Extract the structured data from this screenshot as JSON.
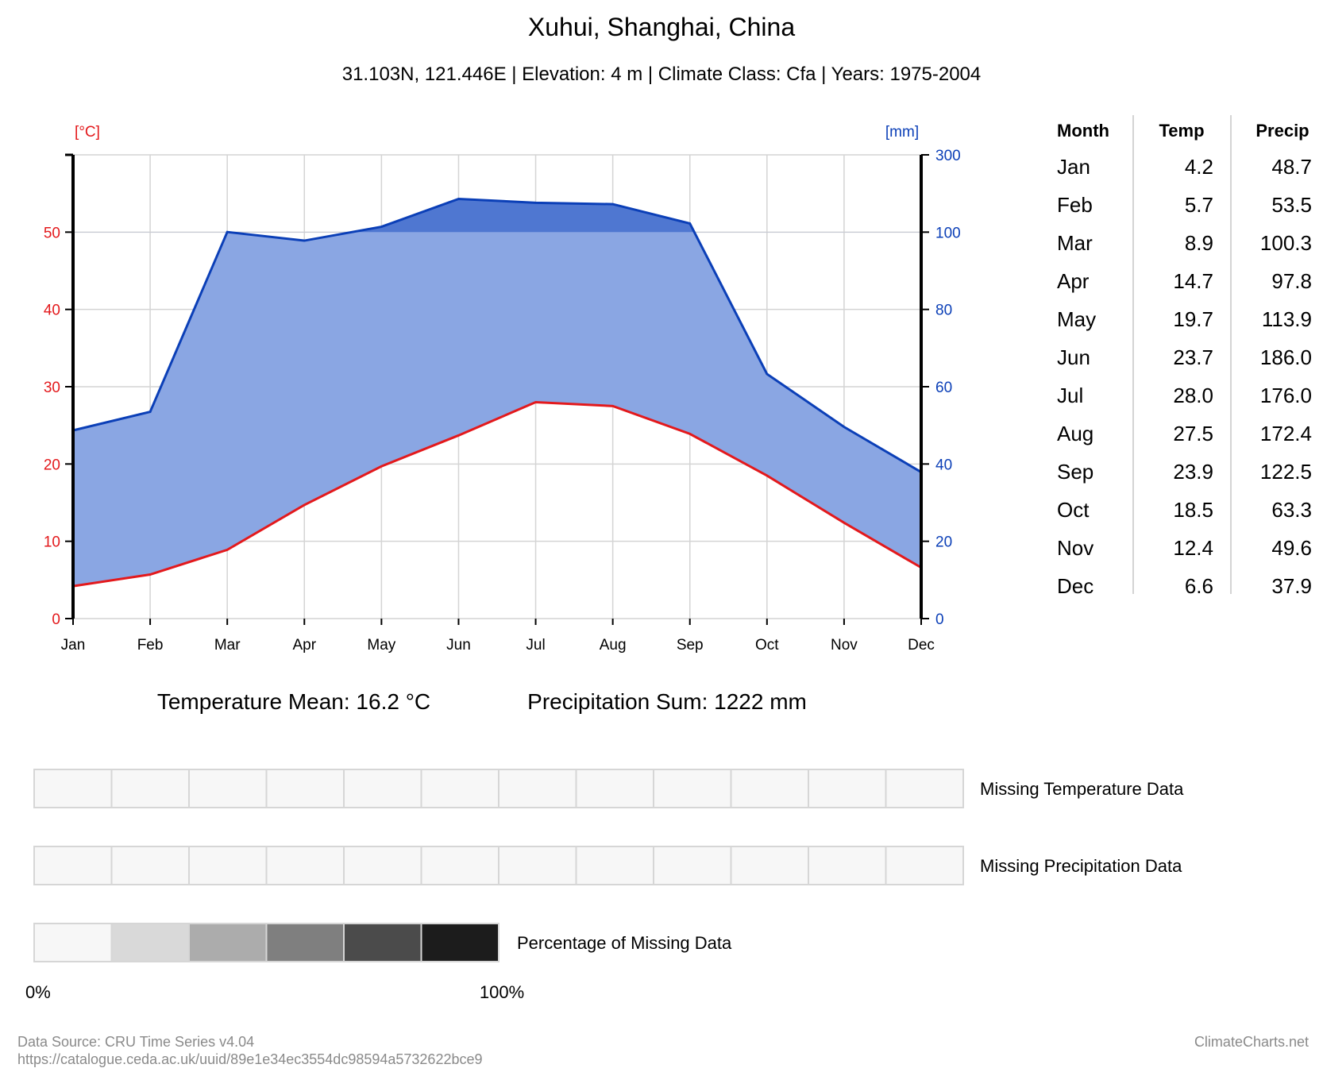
{
  "chart_data": {
    "type": "climate-diagram",
    "title": "Xuhui, Shanghai, China",
    "subtitle": "31.103N, 121.446E | Elevation: 4 m | Climate Class: Cfa | Years: 1975-2004",
    "temp_unit": "[°C]",
    "precip_unit": "[mm]",
    "categories": [
      "Jan",
      "Feb",
      "Mar",
      "Apr",
      "May",
      "Jun",
      "Jul",
      "Aug",
      "Sep",
      "Oct",
      "Nov",
      "Dec"
    ],
    "series": [
      {
        "name": "Temp",
        "values": [
          4.2,
          5.7,
          8.9,
          14.7,
          19.7,
          23.7,
          28.0,
          27.5,
          23.9,
          18.5,
          12.4,
          6.6
        ],
        "color": "#e3191c"
      },
      {
        "name": "Precip",
        "values": [
          48.7,
          53.5,
          100.3,
          97.8,
          113.9,
          186.0,
          176.0,
          172.4,
          122.5,
          63.3,
          49.6,
          37.9
        ],
        "color": "#0b3fb7"
      }
    ],
    "temp_ylim": [
      0,
      60
    ],
    "temp_ticks": [
      "0",
      "10",
      "20",
      "30",
      "40",
      "50"
    ],
    "precip_ticks": [
      "0",
      "20",
      "40",
      "60",
      "80",
      "100",
      "300"
    ],
    "precip_scale_break": 100,
    "precip_ylim": [
      0,
      300
    ],
    "grid": true,
    "fill_color": "#8aa6e3",
    "fill_color_above": "#4f77d1"
  },
  "table": {
    "headers": [
      "Month",
      "Temp",
      "Precip"
    ],
    "rows": [
      [
        "Jan",
        "4.2",
        "48.7"
      ],
      [
        "Feb",
        "5.7",
        "53.5"
      ],
      [
        "Mar",
        "8.9",
        "100.3"
      ],
      [
        "Apr",
        "14.7",
        "97.8"
      ],
      [
        "May",
        "19.7",
        "113.9"
      ],
      [
        "Jun",
        "23.7",
        "186.0"
      ],
      [
        "Jul",
        "28.0",
        "176.0"
      ],
      [
        "Aug",
        "27.5",
        "172.4"
      ],
      [
        "Sep",
        "23.9",
        "122.5"
      ],
      [
        "Oct",
        "18.5",
        "63.3"
      ],
      [
        "Nov",
        "12.4",
        "49.6"
      ],
      [
        "Dec",
        "6.6",
        "37.9"
      ]
    ]
  },
  "summary": {
    "temperature_mean": "Temperature Mean: 16.2 °C",
    "precipitation_sum": "Precipitation Sum: 1222 mm"
  },
  "missing_data": {
    "temperature_label": "Missing Temperature Data",
    "precipitation_label": "Missing Precipitation Data",
    "percentage_label": "Percentage of Missing Data",
    "temperature_missing_pct": [
      0,
      0,
      0,
      0,
      0,
      0,
      0,
      0,
      0,
      0,
      0,
      0
    ],
    "precipitation_missing_pct": [
      0,
      0,
      0,
      0,
      0,
      0,
      0,
      0,
      0,
      0,
      0,
      0
    ],
    "scale_colors": [
      "#f7f7f7",
      "#d9d9d9",
      "#acacac",
      "#7f7f7f",
      "#4b4b4b",
      "#1c1c1c"
    ],
    "scale_min_label": "0%",
    "scale_max_label": "100%"
  },
  "footer": {
    "source_line1": "Data Source: CRU Time Series v4.04",
    "source_line2": "https://catalogue.ceda.ac.uk/uuid/89e1e34ec3554dc98594a5732622bce9",
    "brand": "ClimateCharts.net"
  }
}
